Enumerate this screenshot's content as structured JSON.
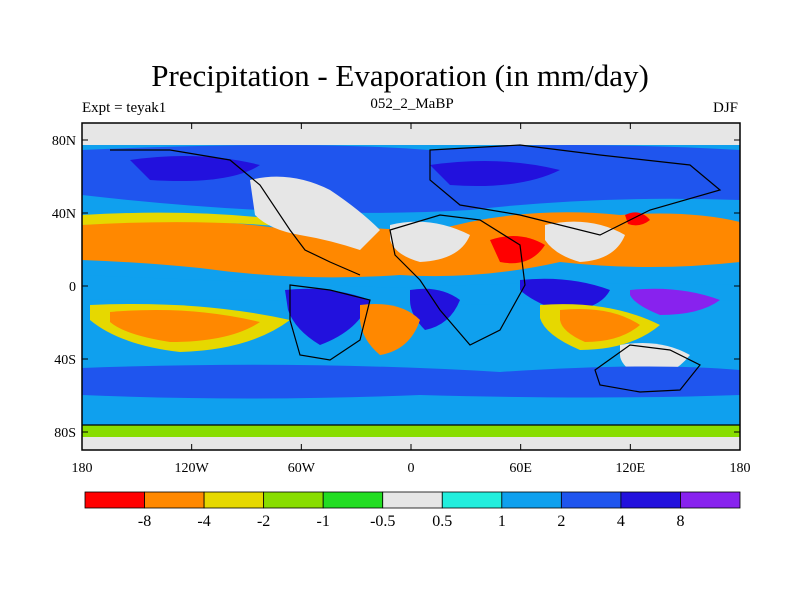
{
  "title": "Precipitation - Evaporation (in mm/day)",
  "subtitle_left": "Expt = teyak1",
  "subtitle_center": "052_2_MaBP",
  "subtitle_right": "DJF",
  "axes": {
    "x_ticks": [
      "180",
      "120W",
      "60W",
      "0",
      "60E",
      "120E",
      "180"
    ],
    "y_ticks": [
      "80N",
      "40N",
      "0",
      "40S",
      "80S"
    ]
  },
  "colorbar": {
    "colors": [
      "#ff0000",
      "#ff8800",
      "#e6d800",
      "#88dd00",
      "#22dd22",
      "#e6e6e6",
      "#22eedd",
      "#0fa0ee",
      "#1f55ee",
      "#2211dd",
      "#8822ee"
    ],
    "labels": [
      "-8",
      "-4",
      "-2",
      "-1",
      "-0.5",
      "0.5",
      "1",
      "2",
      "4",
      "8"
    ]
  },
  "colors": {
    "ocean_dry": "#ff8800",
    "wet": "#1f55ee",
    "neutral": "#e6e6e6"
  }
}
